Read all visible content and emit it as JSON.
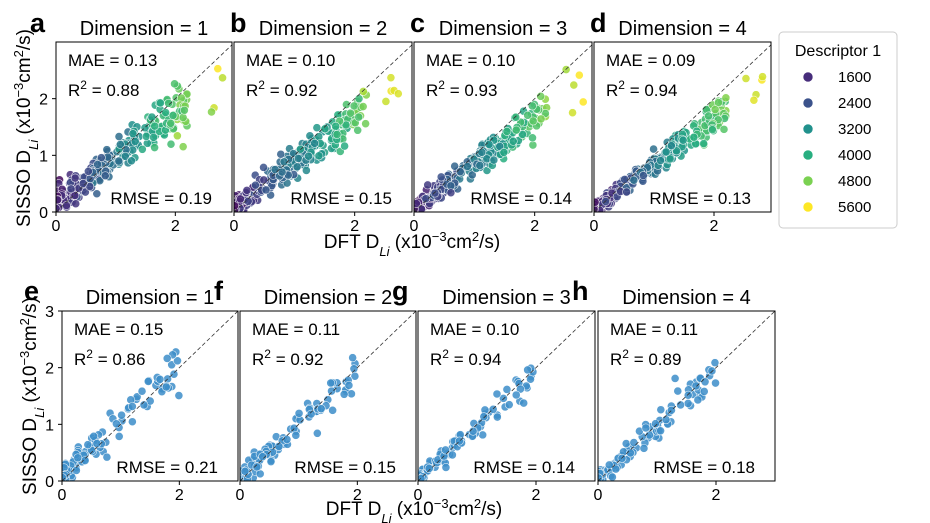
{
  "chart_data": {
    "type": "scatter",
    "x_axis_label": "DFT D",
    "x_axis_subscript": "Li",
    "x_axis_units": " (x10",
    "x_axis_exp": "−3",
    "x_axis_units2": "cm",
    "x_axis_sq": "2",
    "x_axis_units3": "/s)",
    "y_axis_label": "SISSO D",
    "y_axis_subscript": "Li",
    "y_axis_units": " (x10",
    "y_axis_exp": "−3",
    "y_axis_units2": "cm",
    "y_axis_sq": "2",
    "y_axis_units3": "/s)",
    "rows": [
      {
        "xlim": [
          0,
          2.95
        ],
        "ylim": [
          0,
          3.0
        ],
        "yticks": [
          {
            "v": 0,
            "t": "0"
          },
          {
            "v": 1,
            "t": "1"
          },
          {
            "v": 2,
            "t": "2"
          }
        ],
        "xticks": [
          {
            "v": 0,
            "t": "0"
          },
          {
            "v": 2,
            "t": "2"
          }
        ],
        "panels": [
          {
            "letter": "a",
            "title": "Dimension = 1",
            "mae": "MAE = 0.13",
            "r2_prefix": "R",
            "r2_sup": "2",
            "r2_value": " = 0.88",
            "rmse": "RMSE = 0.19",
            "seed": 11,
            "spread": 0.2,
            "bias": 0.15
          },
          {
            "letter": "b",
            "title": "Dimension = 2",
            "mae": "MAE = 0.10",
            "r2_prefix": "R",
            "r2_sup": "2",
            "r2_value": " = 0.92",
            "rmse": "RMSE = 0.15",
            "seed": 23,
            "spread": 0.15,
            "bias": 0.08
          },
          {
            "letter": "c",
            "title": "Dimension = 3",
            "mae": "MAE = 0.10",
            "r2_prefix": "R",
            "r2_sup": "2",
            "r2_value": " = 0.93",
            "rmse": "RMSE = 0.14",
            "seed": 37,
            "spread": 0.14,
            "bias": 0.05
          },
          {
            "letter": "d",
            "title": "Dimension = 4",
            "mae": "MAE = 0.09",
            "r2_prefix": "R",
            "r2_sup": "2",
            "r2_value": " = 0.94",
            "rmse": "RMSE = 0.13",
            "seed": 41,
            "spread": 0.13,
            "bias": 0.04
          }
        ]
      },
      {
        "xlim": [
          0,
          3.0
        ],
        "ylim": [
          0,
          3.0
        ],
        "yticks": [
          {
            "v": 0,
            "t": "0"
          },
          {
            "v": 1,
            "t": "1"
          },
          {
            "v": 2,
            "t": "2"
          },
          {
            "v": 3,
            "t": "3"
          }
        ],
        "xticks": [
          {
            "v": 0,
            "t": "0"
          },
          {
            "v": 2,
            "t": "2"
          }
        ],
        "panels": [
          {
            "letter": "e",
            "title": "Dimension = 1",
            "mae": "MAE = 0.15",
            "r2_prefix": "R",
            "r2_sup": "2",
            "r2_value": " = 0.86",
            "rmse": "RMSE = 0.21",
            "seed": 53,
            "spread": 0.22,
            "bias": 0.12
          },
          {
            "letter": "f",
            "title": "Dimension = 2",
            "mae": "MAE = 0.11",
            "r2_prefix": "R",
            "r2_sup": "2",
            "r2_value": " = 0.92",
            "rmse": "RMSE = 0.15",
            "seed": 67,
            "spread": 0.15,
            "bias": 0.05
          },
          {
            "letter": "g",
            "title": "Dimension = 3",
            "mae": "MAE = 0.10",
            "r2_prefix": "R",
            "r2_sup": "2",
            "r2_value": " = 0.94",
            "rmse": "RMSE = 0.14",
            "seed": 71,
            "spread": 0.14,
            "bias": 0.04
          },
          {
            "letter": "h",
            "title": "Dimension = 4",
            "mae": "MAE = 0.11",
            "r2_prefix": "R",
            "r2_sup": "2",
            "r2_value": " = 0.89",
            "rmse": "RMSE = 0.18",
            "seed": 89,
            "spread": 0.16,
            "bias": 0.04
          }
        ]
      }
    ],
    "legend": {
      "title": "Descriptor 1",
      "entries": [
        {
          "label": "1600",
          "color": "#472d7b"
        },
        {
          "label": "2400",
          "color": "#3b528b"
        },
        {
          "label": "3200",
          "color": "#21918c"
        },
        {
          "label": "4000",
          "color": "#28ae80"
        },
        {
          "label": "4800",
          "color": "#7ad151"
        },
        {
          "label": "5600",
          "color": "#fde725"
        }
      ]
    },
    "bottom_point_color": "#3d8ec9"
  }
}
